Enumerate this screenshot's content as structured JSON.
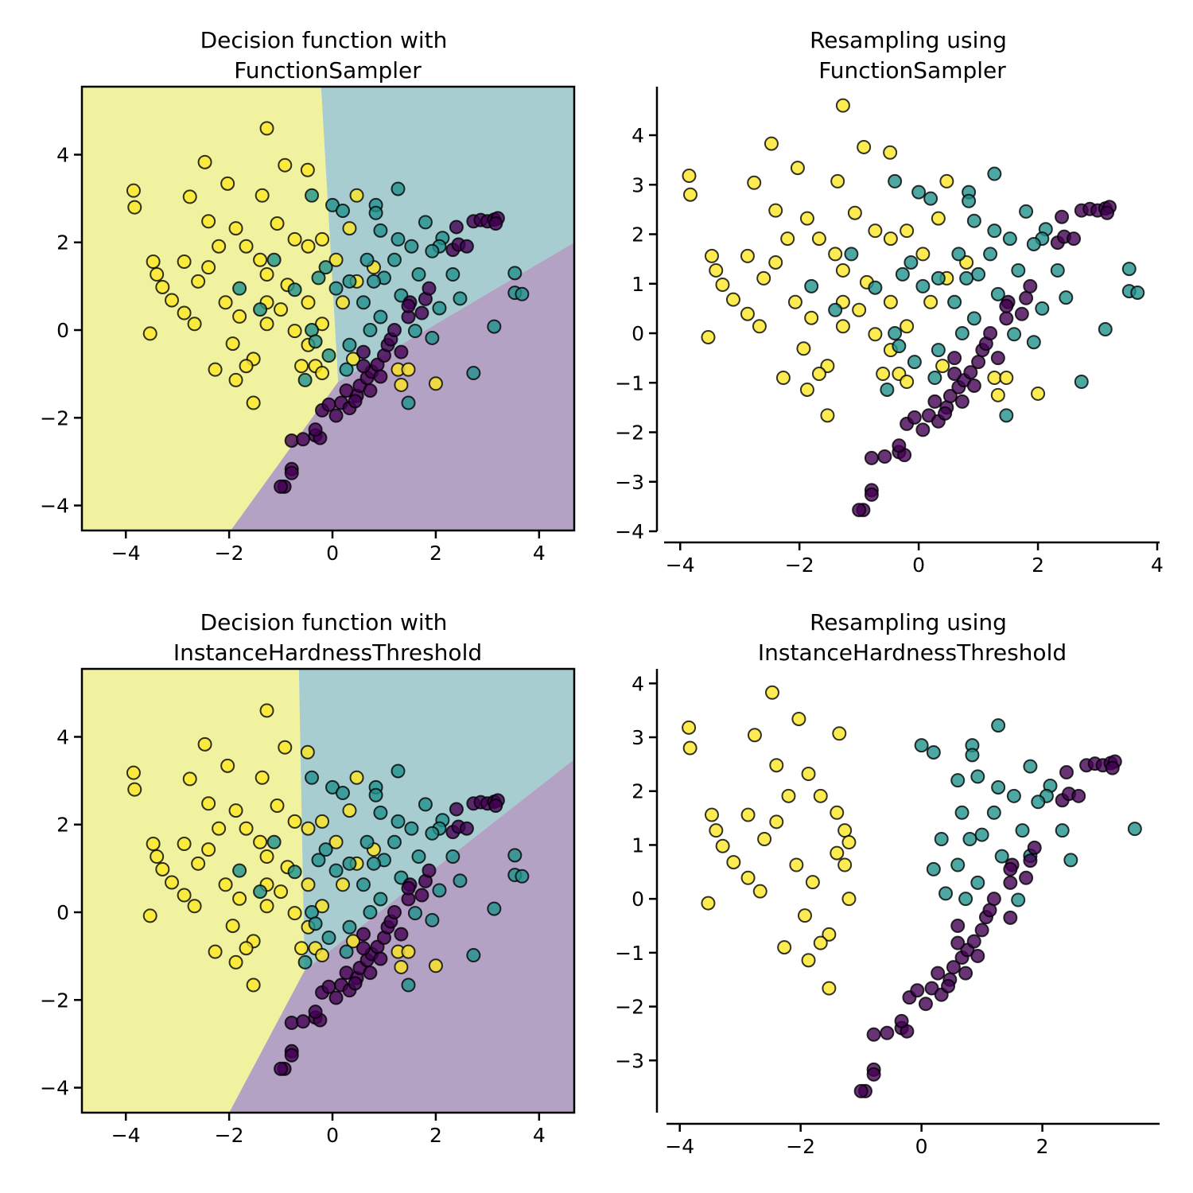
{
  "colors": {
    "class_0": "#440154",
    "class_1": "#21918c",
    "class_2": "#fde725",
    "region_0": "#b3a2c4",
    "region_1": "#a8cdd1",
    "region_2": "#f0f2a0"
  },
  "datasets": {
    "original": {
      "class_0": [
        [
          -0.93,
          -3.57
        ],
        [
          -1.0,
          -3.57
        ],
        [
          -0.79,
          -3.17
        ],
        [
          -0.79,
          -3.26
        ],
        [
          -0.79,
          -2.52
        ],
        [
          -0.57,
          -2.49
        ],
        [
          -0.33,
          -2.4
        ],
        [
          -0.24,
          -2.46
        ],
        [
          -0.33,
          -2.27
        ],
        [
          -0.2,
          -1.83
        ],
        [
          -0.07,
          -1.7
        ],
        [
          0.07,
          -1.95
        ],
        [
          0.17,
          -1.66
        ],
        [
          0.33,
          -1.78
        ],
        [
          0.47,
          -1.5
        ],
        [
          0.53,
          -1.27
        ],
        [
          0.67,
          -1.09
        ],
        [
          0.76,
          -0.95
        ],
        [
          0.87,
          -0.79
        ],
        [
          0.93,
          -1.06
        ],
        [
          1.0,
          -0.58
        ],
        [
          1.07,
          -0.34
        ],
        [
          1.13,
          -0.21
        ],
        [
          1.2,
          0.0
        ],
        [
          1.47,
          0.3
        ],
        [
          1.5,
          0.63
        ],
        [
          1.73,
          0.39
        ],
        [
          1.8,
          0.71
        ],
        [
          1.87,
          0.95
        ],
        [
          2.33,
          1.83
        ],
        [
          2.4,
          2.35
        ],
        [
          2.44,
          1.95
        ],
        [
          2.6,
          1.91
        ],
        [
          2.73,
          2.48
        ],
        [
          2.87,
          2.51
        ],
        [
          3.0,
          2.48
        ],
        [
          3.13,
          2.52
        ],
        [
          3.2,
          2.55
        ],
        [
          3.16,
          2.43
        ],
        [
          0.6,
          -0.82
        ],
        [
          0.73,
          -1.38
        ],
        [
          0.44,
          -1.62
        ],
        [
          0.27,
          -1.38
        ],
        [
          0.6,
          -0.5
        ],
        [
          1.33,
          -0.5
        ],
        [
          1.47,
          0.55
        ]
      ],
      "class_1": [
        [
          3.53,
          1.3
        ],
        [
          3.53,
          0.85
        ],
        [
          3.67,
          0.82
        ],
        [
          3.13,
          0.08
        ],
        [
          2.73,
          -0.98
        ],
        [
          1.47,
          -1.66
        ],
        [
          1.27,
          3.22
        ],
        [
          -0.4,
          3.07
        ],
        [
          0.0,
          2.85
        ],
        [
          0.2,
          2.72
        ],
        [
          0.84,
          2.85
        ],
        [
          0.84,
          2.67
        ],
        [
          1.8,
          2.46
        ],
        [
          2.13,
          2.1
        ],
        [
          2.07,
          1.91
        ],
        [
          1.93,
          1.8
        ],
        [
          1.53,
          1.91
        ],
        [
          1.27,
          2.07
        ],
        [
          0.93,
          2.27
        ],
        [
          0.67,
          1.6
        ],
        [
          1.2,
          1.6
        ],
        [
          1.67,
          1.27
        ],
        [
          2.33,
          1.27
        ],
        [
          2.07,
          0.5
        ],
        [
          2.47,
          0.72
        ],
        [
          1.93,
          -0.18
        ],
        [
          1.6,
          -0.02
        ],
        [
          0.93,
          0.3
        ],
        [
          0.6,
          0.63
        ],
        [
          0.33,
          1.11
        ],
        [
          0.07,
          0.95
        ],
        [
          -0.27,
          1.19
        ],
        [
          -0.4,
          0.0
        ],
        [
          -0.33,
          -0.26
        ],
        [
          -0.53,
          -1.14
        ],
        [
          0.27,
          -0.9
        ],
        [
          0.33,
          -0.34
        ],
        [
          0.73,
          0.0
        ],
        [
          -1.13,
          1.6
        ],
        [
          -1.4,
          0.47
        ],
        [
          -1.8,
          0.95
        ],
        [
          -0.73,
          0.92
        ],
        [
          -0.13,
          1.43
        ],
        [
          1.0,
          1.19
        ],
        [
          1.33,
          0.79
        ],
        [
          0.8,
          1.11
        ],
        [
          -0.07,
          -0.58
        ]
      ],
      "class_2": [
        [
          -3.85,
          3.18
        ],
        [
          -3.83,
          2.8
        ],
        [
          -2.47,
          3.83
        ],
        [
          -2.03,
          3.34
        ],
        [
          -2.76,
          3.04
        ],
        [
          -0.92,
          3.76
        ],
        [
          -0.48,
          3.65
        ],
        [
          -1.36,
          3.07
        ],
        [
          0.47,
          3.07
        ],
        [
          -1.27,
          4.6
        ],
        [
          -3.47,
          1.56
        ],
        [
          -3.4,
          1.27
        ],
        [
          -3.29,
          0.98
        ],
        [
          -3.11,
          0.68
        ],
        [
          -3.53,
          -0.08
        ],
        [
          -2.67,
          0.14
        ],
        [
          -2.87,
          0.39
        ],
        [
          -2.27,
          -0.9
        ],
        [
          -1.53,
          -0.66
        ],
        [
          -1.53,
          -1.66
        ],
        [
          -1.87,
          -1.14
        ],
        [
          -1.67,
          -0.82
        ],
        [
          -1.93,
          -0.31
        ],
        [
          -2.4,
          1.43
        ],
        [
          -2.2,
          1.91
        ],
        [
          -2.4,
          2.48
        ],
        [
          -1.87,
          2.32
        ],
        [
          -1.67,
          1.91
        ],
        [
          -1.4,
          1.6
        ],
        [
          -1.07,
          2.43
        ],
        [
          -0.73,
          2.07
        ],
        [
          -0.87,
          1.03
        ],
        [
          -1.0,
          0.47
        ],
        [
          -1.27,
          0.14
        ],
        [
          -0.73,
          -0.02
        ],
        [
          -0.47,
          -0.34
        ],
        [
          -0.33,
          -0.82
        ],
        [
          -0.6,
          -0.82
        ],
        [
          -0.2,
          -0.98
        ],
        [
          0.4,
          -0.66
        ],
        [
          1.27,
          -0.9
        ],
        [
          1.47,
          -0.9
        ],
        [
          2.0,
          -1.22
        ],
        [
          1.33,
          -1.25
        ],
        [
          0.47,
          1.11
        ],
        [
          0.8,
          1.43
        ],
        [
          0.07,
          1.6
        ],
        [
          -0.2,
          2.07
        ],
        [
          0.33,
          2.32
        ],
        [
          0.2,
          0.63
        ],
        [
          -1.8,
          0.31
        ],
        [
          -2.6,
          1.11
        ],
        [
          -2.87,
          1.56
        ],
        [
          -2.07,
          0.63
        ],
        [
          -1.27,
          0.63
        ],
        [
          -0.47,
          0.63
        ],
        [
          -0.2,
          0.14
        ],
        [
          -1.27,
          1.27
        ],
        [
          -0.47,
          1.91
        ]
      ]
    },
    "iht_resampled": {
      "class_0": [
        [
          -0.93,
          -3.57
        ],
        [
          -1.0,
          -3.57
        ],
        [
          -0.79,
          -3.17
        ],
        [
          -0.79,
          -3.26
        ],
        [
          -0.79,
          -2.52
        ],
        [
          -0.57,
          -2.49
        ],
        [
          -0.33,
          -2.4
        ],
        [
          -0.24,
          -2.46
        ],
        [
          -0.33,
          -2.27
        ],
        [
          -0.2,
          -1.83
        ],
        [
          -0.07,
          -1.7
        ],
        [
          0.07,
          -1.95
        ],
        [
          0.17,
          -1.66
        ],
        [
          0.33,
          -1.78
        ],
        [
          0.47,
          -1.5
        ],
        [
          0.53,
          -1.27
        ],
        [
          0.67,
          -1.09
        ],
        [
          0.76,
          -0.95
        ],
        [
          0.87,
          -0.79
        ],
        [
          0.93,
          -1.06
        ],
        [
          1.0,
          -0.58
        ],
        [
          1.07,
          -0.34
        ],
        [
          1.13,
          -0.21
        ],
        [
          1.2,
          0.0
        ],
        [
          1.47,
          0.3
        ],
        [
          1.5,
          0.63
        ],
        [
          1.73,
          0.39
        ],
        [
          1.8,
          0.71
        ],
        [
          1.87,
          0.95
        ],
        [
          2.33,
          1.83
        ],
        [
          2.4,
          2.35
        ],
        [
          2.44,
          1.95
        ],
        [
          2.6,
          1.91
        ],
        [
          2.73,
          2.48
        ],
        [
          2.87,
          2.51
        ],
        [
          3.0,
          2.48
        ],
        [
          3.13,
          2.52
        ],
        [
          3.2,
          2.55
        ],
        [
          3.16,
          2.43
        ],
        [
          0.6,
          -0.82
        ],
        [
          0.73,
          -1.38
        ],
        [
          0.44,
          -1.62
        ],
        [
          0.27,
          -1.38
        ],
        [
          0.6,
          -0.5
        ],
        [
          1.47,
          -0.35
        ],
        [
          1.47,
          0.55
        ]
      ],
      "class_1": [
        [
          3.53,
          1.3
        ],
        [
          1.27,
          3.22
        ],
        [
          0.0,
          2.85
        ],
        [
          0.2,
          2.72
        ],
        [
          0.84,
          2.85
        ],
        [
          0.84,
          2.67
        ],
        [
          1.8,
          2.46
        ],
        [
          2.13,
          2.1
        ],
        [
          2.07,
          1.91
        ],
        [
          1.93,
          1.8
        ],
        [
          1.53,
          1.91
        ],
        [
          1.27,
          2.07
        ],
        [
          0.93,
          2.27
        ],
        [
          0.67,
          1.6
        ],
        [
          1.2,
          1.6
        ],
        [
          1.67,
          1.27
        ],
        [
          2.33,
          1.27
        ],
        [
          2.47,
          0.72
        ],
        [
          1.6,
          -0.02
        ],
        [
          0.93,
          0.3
        ],
        [
          0.6,
          0.63
        ],
        [
          0.33,
          1.11
        ],
        [
          0.73,
          0.0
        ],
        [
          1.0,
          1.19
        ],
        [
          1.33,
          0.79
        ],
        [
          0.8,
          1.11
        ],
        [
          0.2,
          0.55
        ],
        [
          0.4,
          0.1
        ],
        [
          1.8,
          0.8
        ],
        [
          0.6,
          2.2
        ]
      ],
      "class_2": [
        [
          -3.85,
          3.18
        ],
        [
          -3.83,
          2.8
        ],
        [
          -2.47,
          3.83
        ],
        [
          -2.03,
          3.34
        ],
        [
          -2.76,
          3.04
        ],
        [
          -1.36,
          3.07
        ],
        [
          -3.47,
          1.56
        ],
        [
          -3.4,
          1.27
        ],
        [
          -3.29,
          0.98
        ],
        [
          -3.11,
          0.68
        ],
        [
          -3.53,
          -0.08
        ],
        [
          -2.67,
          0.14
        ],
        [
          -2.87,
          0.39
        ],
        [
          -2.27,
          -0.9
        ],
        [
          -1.53,
          -0.66
        ],
        [
          -1.53,
          -1.66
        ],
        [
          -1.87,
          -1.14
        ],
        [
          -1.67,
          -0.82
        ],
        [
          -1.93,
          -0.31
        ],
        [
          -2.4,
          1.43
        ],
        [
          -2.2,
          1.91
        ],
        [
          -2.4,
          2.48
        ],
        [
          -1.87,
          2.32
        ],
        [
          -1.67,
          1.91
        ],
        [
          -1.4,
          1.6
        ],
        [
          -1.8,
          0.31
        ],
        [
          -2.6,
          1.11
        ],
        [
          -2.87,
          1.56
        ],
        [
          -2.07,
          0.63
        ],
        [
          -1.27,
          0.63
        ],
        [
          -1.27,
          1.27
        ],
        [
          -1.2,
          0.0
        ],
        [
          -1.2,
          1.05
        ],
        [
          -1.4,
          0.85
        ]
      ]
    }
  },
  "chart_data": [
    {
      "type": "scatter",
      "title": "Decision function with\nFunctionSampler",
      "title_lines": [
        "Decision function with",
        "FunctionSampler"
      ],
      "points": "original",
      "xlim": [
        -4.85,
        4.68
      ],
      "ylim": [
        -4.57,
        5.55
      ],
      "xticks": [
        -4,
        -2,
        0,
        2,
        4
      ],
      "yticks": [
        -4,
        -2,
        0,
        2,
        4
      ],
      "xtick_labels": [
        "−4",
        "−2",
        "0",
        "2",
        "4"
      ],
      "ytick_labels": [
        "−4",
        "−2",
        "0",
        "2",
        "4"
      ],
      "regions": [
        {
          "class": "2",
          "polygon": [
            [
              -4.85,
              5.55
            ],
            [
              -0.22,
              5.55
            ],
            [
              0.11,
              -1.18
            ],
            [
              -1.97,
              -4.57
            ],
            [
              -4.85,
              -4.57
            ]
          ]
        },
        {
          "class": "1",
          "polygon": [
            [
              -0.22,
              5.55
            ],
            [
              4.68,
              5.55
            ],
            [
              4.68,
              2.0
            ],
            [
              0.11,
              -1.18
            ]
          ]
        },
        {
          "class": "0",
          "polygon": [
            [
              0.11,
              -1.18
            ],
            [
              4.68,
              2.0
            ],
            [
              4.68,
              -4.57
            ],
            [
              -1.97,
              -4.57
            ]
          ]
        }
      ],
      "grid": false
    },
    {
      "type": "scatter",
      "title": "Resampling using\nFunctionSampler",
      "title_lines": [
        "Resampling using",
        "FunctionSampler"
      ],
      "points": "original",
      "xlim": [
        -4.27,
        4.04
      ],
      "ylim": [
        -4.0,
        4.98
      ],
      "xticks": [
        -4,
        -2,
        0,
        2,
        4
      ],
      "yticks": [
        -4,
        -3,
        -2,
        -1,
        0,
        1,
        2,
        3,
        4
      ],
      "xtick_labels": [
        "−4",
        "−2",
        "0",
        "2",
        "4"
      ],
      "ytick_labels": [
        "−4",
        "−3",
        "−2",
        "−1",
        "0",
        "1",
        "2",
        "3",
        "4"
      ],
      "grid": false
    },
    {
      "type": "scatter",
      "title": "Decision function with\nInstanceHardnessThreshold",
      "title_lines": [
        "Decision function with",
        "InstanceHardnessThreshold"
      ],
      "points": "original",
      "xlim": [
        -4.85,
        4.68
      ],
      "ylim": [
        -4.57,
        5.55
      ],
      "xticks": [
        -4,
        -2,
        0,
        2,
        4
      ],
      "yticks": [
        -4,
        -2,
        0,
        2,
        4
      ],
      "xtick_labels": [
        "−4",
        "−2",
        "0",
        "2",
        "4"
      ],
      "ytick_labels": [
        "−4",
        "−2",
        "0",
        "2",
        "4"
      ],
      "regions": [
        {
          "class": "2",
          "polygon": [
            [
              -4.85,
              5.55
            ],
            [
              -0.65,
              5.55
            ],
            [
              -0.54,
              -1.33
            ],
            [
              -2.0,
              -4.57
            ],
            [
              -4.85,
              -4.57
            ]
          ]
        },
        {
          "class": "1",
          "polygon": [
            [
              -0.65,
              5.55
            ],
            [
              4.68,
              5.55
            ],
            [
              4.68,
              3.49
            ],
            [
              -0.54,
              -1.33
            ]
          ]
        },
        {
          "class": "0",
          "polygon": [
            [
              -0.54,
              -1.33
            ],
            [
              4.68,
              3.49
            ],
            [
              4.68,
              -4.57
            ],
            [
              -2.0,
              -4.57
            ]
          ]
        }
      ],
      "grid": false
    },
    {
      "type": "scatter",
      "title": "Resampling using\nInstanceHardnessThreshold",
      "title_lines": [
        "Resampling using",
        "InstanceHardnessThreshold"
      ],
      "points": "iht_resampled",
      "xlim": [
        -4.22,
        3.94
      ],
      "ylim": [
        -3.97,
        4.27
      ],
      "xticks": [
        -4,
        -2,
        0,
        2
      ],
      "yticks": [
        -3,
        -2,
        -1,
        0,
        1,
        2,
        3,
        4
      ],
      "xtick_labels": [
        "−4",
        "−2",
        "0",
        "2"
      ],
      "ytick_labels": [
        "−3",
        "−2",
        "−1",
        "0",
        "1",
        "2",
        "3",
        "4"
      ],
      "grid": false
    }
  ]
}
